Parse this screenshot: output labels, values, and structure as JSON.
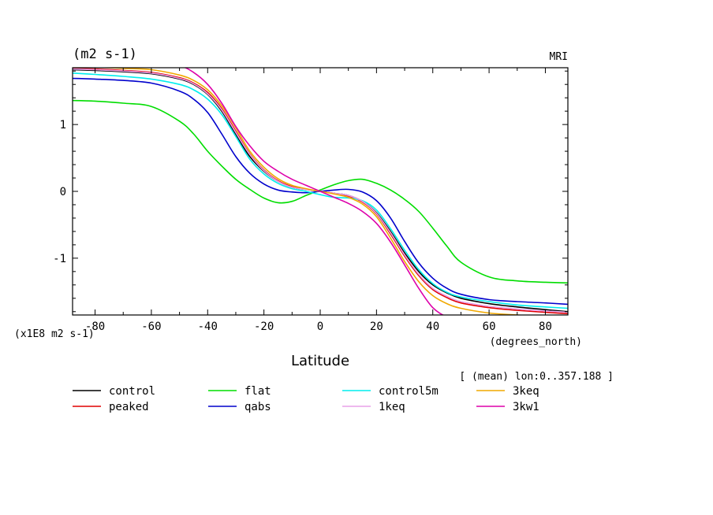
{
  "chart_data": {
    "type": "line",
    "units_label": "(m2 s-1)",
    "model_label": "MRI",
    "scale_label": "(x1E8 m2 s-1)",
    "xunits_label": "(degrees_north)",
    "xlabel": "Latitude",
    "info_label": "[ (mean) lon:0..357.188 ]",
    "xlim": [
      -88,
      88
    ],
    "ylim": [
      -1.85,
      1.85
    ],
    "x_ticks": [
      -80,
      -60,
      -40,
      -20,
      0,
      20,
      40,
      60,
      80
    ],
    "x_tick_labels": [
      "-80",
      "-60",
      "-40",
      "-20",
      "0",
      "20",
      "40",
      "60",
      "80"
    ],
    "y_ticks": [
      -1,
      0,
      1
    ],
    "y_tick_labels": [
      "-1",
      "0",
      "1"
    ],
    "x": [
      -88,
      -80,
      -70,
      -60,
      -50,
      -45,
      -40,
      -35,
      -30,
      -25,
      -20,
      -15,
      -10,
      -5,
      0,
      5,
      10,
      15,
      20,
      25,
      30,
      35,
      40,
      45,
      50,
      60,
      70,
      80,
      88
    ],
    "series": [
      {
        "name": "control",
        "color": "#000000",
        "values": [
          1.82,
          1.81,
          1.79,
          1.76,
          1.68,
          1.6,
          1.45,
          1.2,
          0.85,
          0.52,
          0.3,
          0.15,
          0.06,
          0.03,
          0.0,
          -0.03,
          -0.06,
          -0.15,
          -0.32,
          -0.6,
          -0.92,
          -1.2,
          -1.4,
          -1.52,
          -1.6,
          -1.68,
          -1.73,
          -1.77,
          -1.8
        ]
      },
      {
        "name": "peaked",
        "color": "#e00000",
        "values": [
          1.84,
          1.83,
          1.81,
          1.78,
          1.7,
          1.62,
          1.48,
          1.24,
          0.9,
          0.56,
          0.32,
          0.16,
          0.07,
          0.03,
          0.0,
          -0.03,
          -0.07,
          -0.16,
          -0.34,
          -0.64,
          -0.97,
          -1.26,
          -1.47,
          -1.59,
          -1.67,
          -1.74,
          -1.78,
          -1.81,
          -1.83
        ]
      },
      {
        "name": "flat",
        "color": "#00dd00",
        "values": [
          1.36,
          1.35,
          1.32,
          1.27,
          1.05,
          0.86,
          0.6,
          0.38,
          0.18,
          0.03,
          -0.1,
          -0.17,
          -0.15,
          -0.06,
          0.02,
          0.1,
          0.16,
          0.18,
          0.12,
          0.02,
          -0.12,
          -0.3,
          -0.55,
          -0.82,
          -1.06,
          -1.28,
          -1.34,
          -1.36,
          -1.37
        ]
      },
      {
        "name": "qabs",
        "color": "#0000cc",
        "values": [
          1.69,
          1.68,
          1.66,
          1.62,
          1.5,
          1.38,
          1.18,
          0.86,
          0.52,
          0.27,
          0.11,
          0.02,
          -0.01,
          -0.02,
          0.0,
          0.02,
          0.03,
          -0.01,
          -0.14,
          -0.4,
          -0.75,
          -1.07,
          -1.3,
          -1.45,
          -1.54,
          -1.62,
          -1.65,
          -1.67,
          -1.69
        ]
      },
      {
        "name": "control5m",
        "color": "#00eeee",
        "values": [
          1.77,
          1.75,
          1.72,
          1.68,
          1.6,
          1.52,
          1.38,
          1.15,
          0.82,
          0.48,
          0.26,
          0.12,
          0.04,
          0.0,
          -0.05,
          -0.09,
          -0.1,
          -0.14,
          -0.28,
          -0.56,
          -0.88,
          -1.17,
          -1.38,
          -1.51,
          -1.58,
          -1.65,
          -1.7,
          -1.73,
          -1.75
        ]
      },
      {
        "name": "1keq",
        "color": "#e8a0e8",
        "values": [
          1.83,
          1.82,
          1.8,
          1.77,
          1.69,
          1.61,
          1.46,
          1.22,
          0.88,
          0.55,
          0.31,
          0.15,
          0.06,
          0.03,
          0.0,
          -0.03,
          -0.06,
          -0.15,
          -0.33,
          -0.62,
          -0.95,
          -1.24,
          -1.45,
          -1.57,
          -1.65,
          -1.72,
          -1.76,
          -1.79,
          -1.81
        ]
      },
      {
        "name": "3keq",
        "color": "#f0a800",
        "values": [
          1.87,
          1.86,
          1.84,
          1.82,
          1.74,
          1.66,
          1.52,
          1.28,
          0.95,
          0.6,
          0.36,
          0.19,
          0.09,
          0.04,
          0.0,
          -0.04,
          -0.09,
          -0.19,
          -0.38,
          -0.7,
          -1.05,
          -1.35,
          -1.56,
          -1.68,
          -1.75,
          -1.82,
          -1.85,
          -1.86,
          -1.87
        ]
      },
      {
        "name": "3kw1",
        "color": "#dd00aa",
        "values": [
          2.05,
          2.03,
          2.0,
          1.96,
          1.88,
          1.78,
          1.6,
          1.32,
          0.97,
          0.68,
          0.45,
          0.3,
          0.18,
          0.09,
          0.0,
          -0.09,
          -0.18,
          -0.3,
          -0.48,
          -0.76,
          -1.1,
          -1.45,
          -1.74,
          -1.88,
          -1.95,
          -2.02,
          -2.06,
          -2.08,
          -2.1
        ]
      }
    ]
  }
}
